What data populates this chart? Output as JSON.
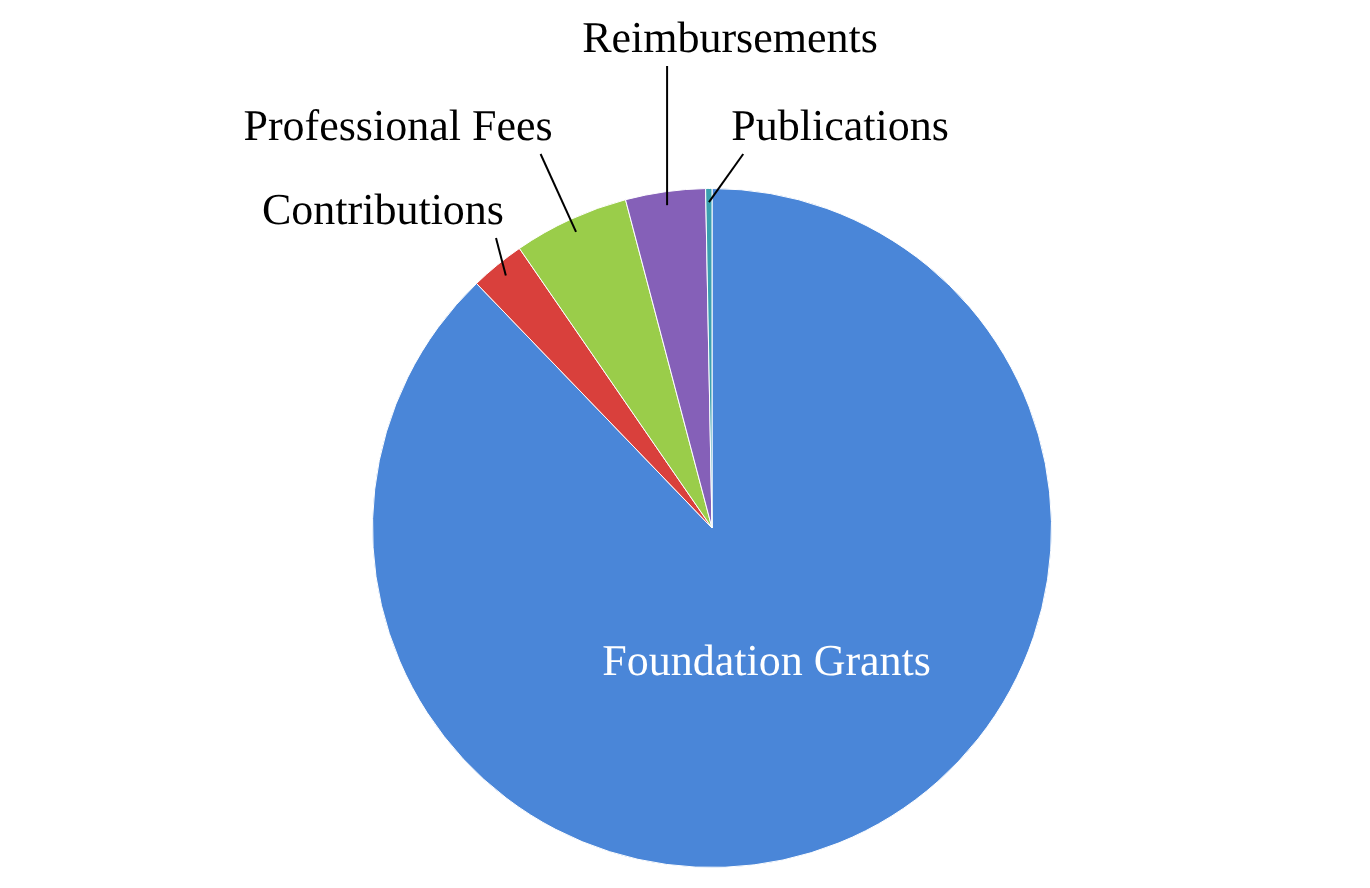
{
  "chart_data": {
    "type": "pie",
    "categories": [
      "Foundation Grants",
      "Contributions",
      "Professional Fees",
      "Reimbursements",
      "Publications"
    ],
    "values": [
      87.8,
      2.6,
      5.5,
      3.8,
      0.3
    ],
    "colors": [
      "#4a86d8",
      "#d9403c",
      "#9acd4a",
      "#8560b8",
      "#3aa0b0"
    ]
  }
}
